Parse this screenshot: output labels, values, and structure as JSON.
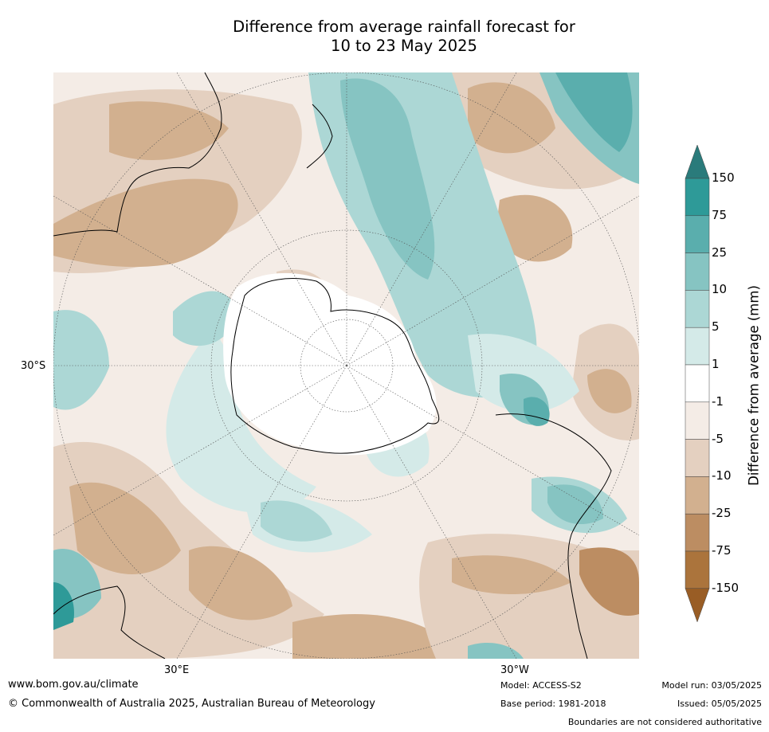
{
  "title": {
    "line1": "Difference from average rainfall forecast for",
    "line2": "10 to 23 May 2025"
  },
  "map": {
    "projection": "south polar stereographic",
    "lat_label": "30°S",
    "lon_labels": [
      "30°E",
      "30°W"
    ],
    "colors": {
      "ocean_background": "#f4ece6",
      "coastline": "#000000",
      "graticule": "#555555"
    }
  },
  "colorbar": {
    "title": "Difference from average (mm)",
    "ticks": [
      "150",
      "75",
      "25",
      "10",
      "5",
      "1",
      "-1",
      "-5",
      "-10",
      "-25",
      "-75",
      "-150"
    ],
    "colors": [
      "#2a7b7b",
      "#2e9a98",
      "#5aaead",
      "#86c4c2",
      "#acd7d5",
      "#d4eae8",
      "#ffffff",
      "#f4ece6",
      "#e4d0c0",
      "#d2b08f",
      "#bc8d62",
      "#ab743c",
      "#995d25"
    ]
  },
  "footer": {
    "website": "www.bom.gov.au/climate",
    "copyright": "© Commonwealth of Australia 2025, Australian Bureau of Meteorology",
    "model": "Model: ACCESS-S2",
    "base_period": "Base period: 1981-2018",
    "model_run": "Model run: 03/05/2025",
    "issued": "Issued: 05/05/2025",
    "disclaimer": "Boundaries are not considered authoritative"
  }
}
